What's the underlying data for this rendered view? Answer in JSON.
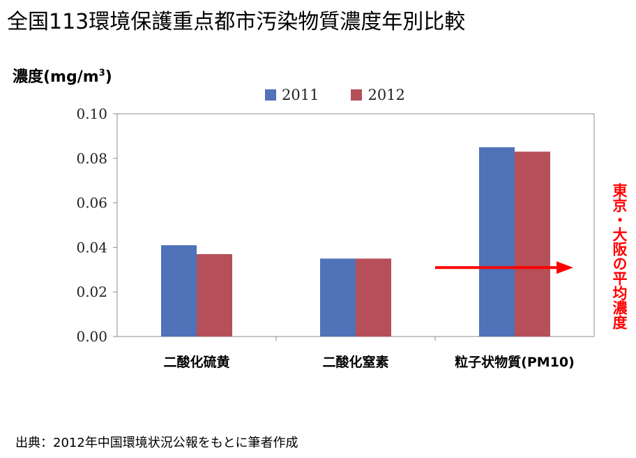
{
  "title": "全国113環境保護重点都市汚染物質濃度年別比較",
  "source": "出典：2012年中国環境状況公報をもとに筆者作成",
  "annotation": "東京・大阪の平均濃度",
  "colors": {
    "series_2011": "#4f72b8",
    "series_2012": "#b5505a",
    "arrow": "#ff0000"
  },
  "chart_data": {
    "type": "bar",
    "ylabel": "濃度(mg/m",
    "ylabel_sup": "3",
    "ylabel_close": ")",
    "categories": [
      "二酸化硫黄",
      "二酸化窒素",
      "粒子状物質(PM10)"
    ],
    "series": [
      {
        "name": "2011",
        "values": [
          0.041,
          0.035,
          0.085
        ]
      },
      {
        "name": "2012",
        "values": [
          0.037,
          0.035,
          0.083
        ]
      }
    ],
    "ylim": [
      0,
      0.1
    ],
    "yticks": [
      "0.00",
      "0.02",
      "0.04",
      "0.06",
      "0.08",
      "0.10"
    ],
    "grid": false,
    "legend_position": "top-center",
    "reference_level": 0.03
  }
}
